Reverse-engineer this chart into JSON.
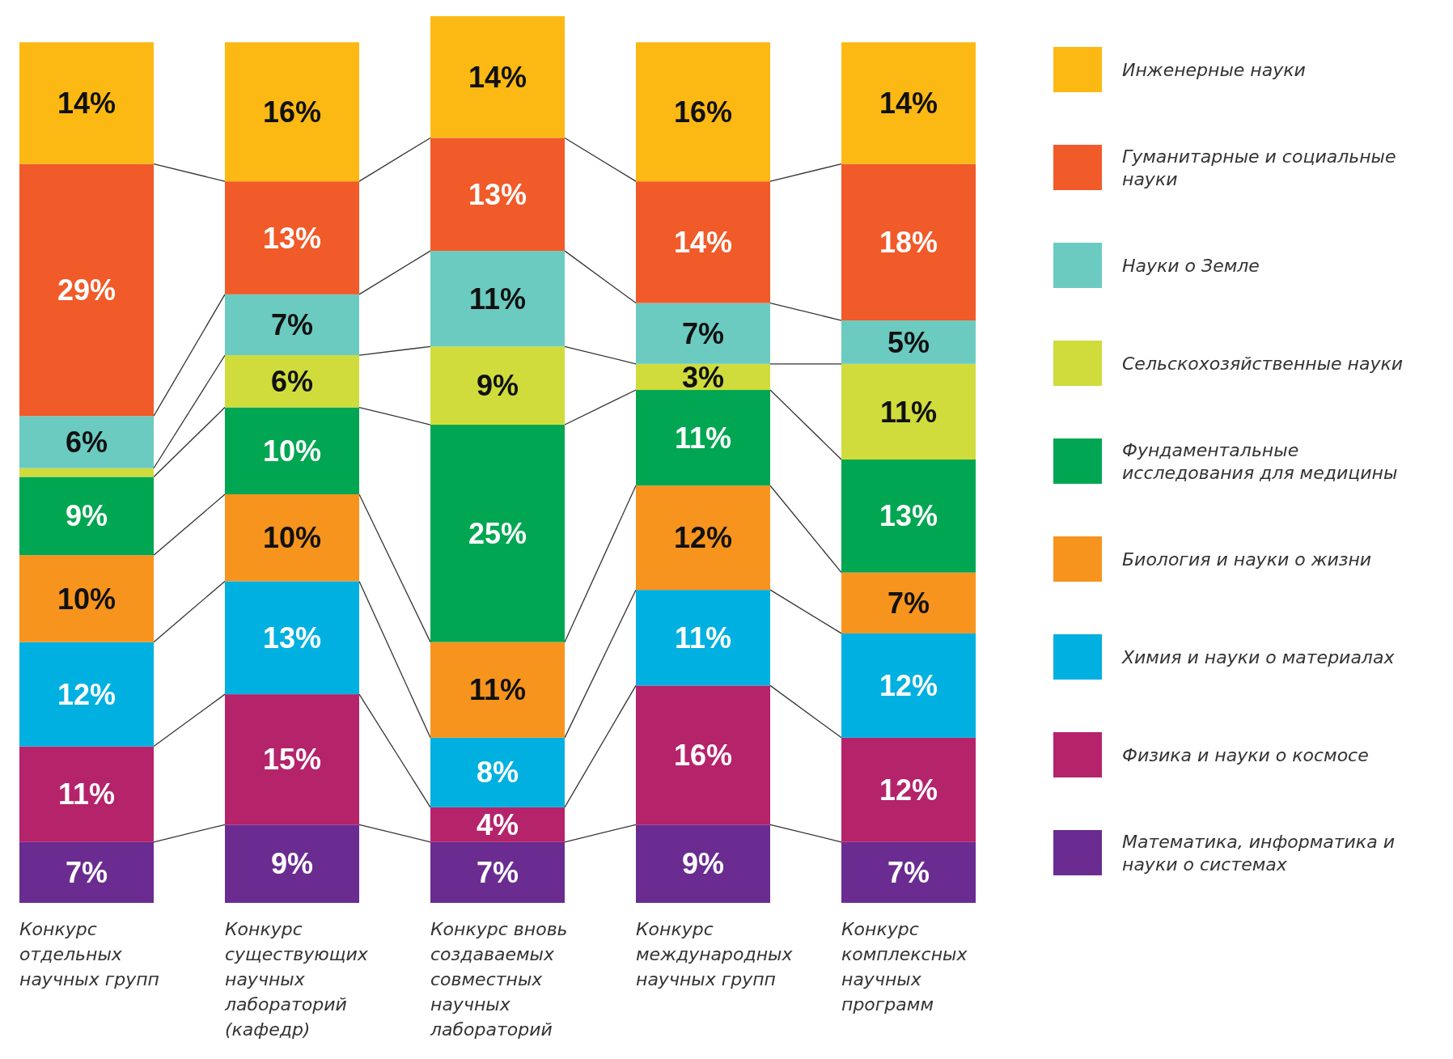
{
  "chart_data": {
    "type": "bar",
    "stacked": true,
    "legend": "right",
    "categories": [
      "Конкурс отдельных научных групп",
      "Конкурс существующих научных лабораторий (кафедр)",
      "Конкурс вновь создаваемых совместных научных лабораторий",
      "Конкурс международных научных групп",
      "Конкурс комплексных научных программ"
    ],
    "series": [
      {
        "name": "Математика, информатика и науки о системах",
        "color": "#6a2c91",
        "values": [
          7,
          9,
          7,
          9,
          7
        ],
        "value_labels": [
          "7%",
          "9%",
          "7%",
          "9%",
          "7%"
        ]
      },
      {
        "name": "Физика и науки о космосе",
        "color": "#b5236b",
        "values": [
          11,
          15,
          4,
          16,
          12
        ],
        "value_labels": [
          "11%",
          "15%",
          "4%",
          "16%",
          "12%"
        ]
      },
      {
        "name": "Химия и науки о материалах",
        "color": "#00b0e0",
        "values": [
          12,
          13,
          8,
          11,
          12
        ],
        "value_labels": [
          "12%",
          "13%",
          "8%",
          "11%",
          "12%"
        ]
      },
      {
        "name": "Биология и науки о жизни",
        "color": "#f7941d",
        "values": [
          10,
          10,
          11,
          12,
          7
        ],
        "value_labels": [
          "10%",
          "10%",
          "11%",
          "12%",
          "7%"
        ]
      },
      {
        "name": "Фундаментальные исследования для медицины",
        "color": "#00a651",
        "values": [
          9,
          10,
          25,
          11,
          13
        ],
        "value_labels": [
          "9%",
          "10%",
          "25%",
          "11%",
          "13%"
        ]
      },
      {
        "name": "Сельскохозяйственные науки",
        "color": "#cfdc3c",
        "values": [
          1,
          6,
          9,
          3,
          11
        ],
        "value_labels": [
          null,
          "6%",
          "9%",
          "3%",
          "11%"
        ]
      },
      {
        "name": "Науки о Земле",
        "color": "#6ccbc0",
        "values": [
          6,
          7,
          11,
          7,
          5
        ],
        "value_labels": [
          "6%",
          "7%",
          "11%",
          "7%",
          "5%"
        ]
      },
      {
        "name": "Гуманитарные и социальные науки",
        "color": "#f15a29",
        "values": [
          29,
          13,
          13,
          14,
          18
        ],
        "value_labels": [
          "29%",
          "13%",
          "13%",
          "14%",
          "18%"
        ]
      },
      {
        "name": "Инженерные науки",
        "color": "#fdb913",
        "values": [
          14,
          16,
          14,
          16,
          14
        ],
        "value_labels": [
          "14%",
          "16%",
          "14%",
          "16%",
          "14%"
        ]
      }
    ]
  }
}
